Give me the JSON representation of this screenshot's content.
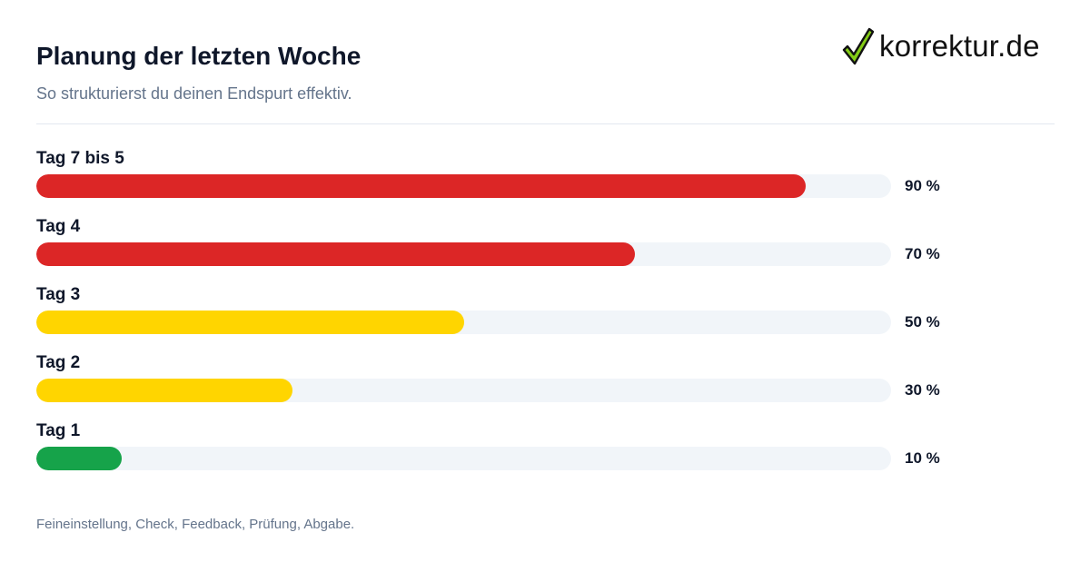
{
  "header": {
    "title": "Planung der letzten Woche",
    "subtitle": "So strukturierst du deinen Endspurt effektiv."
  },
  "brand": {
    "name": "korrektur.de",
    "icon": "checkmark-icon",
    "icon_color": "#84cc16"
  },
  "chart_data": {
    "type": "bar",
    "orientation": "horizontal",
    "categories": [
      "Tag 7 bis 5",
      "Tag 4",
      "Tag 3",
      "Tag 2",
      "Tag 1"
    ],
    "values": [
      90,
      70,
      50,
      30,
      10
    ],
    "value_labels": [
      "90 %",
      "70 %",
      "50 %",
      "30 %",
      "10 %"
    ],
    "colors": [
      "#dc2626",
      "#dc2626",
      "#ffd500",
      "#ffd500",
      "#16a34a"
    ],
    "track_color": "#f1f5f9",
    "xlim": [
      0,
      100
    ],
    "grid": false
  },
  "footnote": "Feineinstellung, Check, Feedback, Prüfung, Abgabe."
}
